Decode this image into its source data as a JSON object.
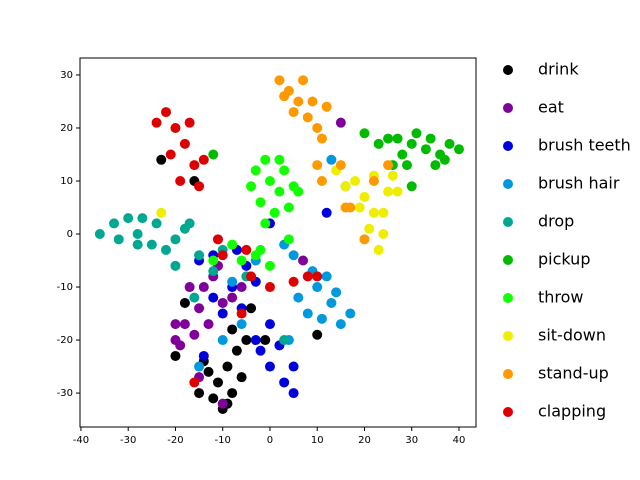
{
  "chart_data": {
    "type": "scatter",
    "xlim": [
      -40.2,
      43.6
    ],
    "ylim": [
      -36.4,
      33.2
    ],
    "xticks": [
      -40,
      -30,
      -20,
      -10,
      0,
      10,
      20,
      30,
      40
    ],
    "yticks": [
      -30,
      -20,
      -10,
      0,
      10,
      20,
      30
    ],
    "legend": "outside-right",
    "series": [
      {
        "name": "drink",
        "color": "#000000",
        "x": [
          -12,
          -10,
          -8,
          -11,
          -9,
          -7,
          -6,
          -13,
          -14,
          -15,
          -5,
          -8,
          -20,
          -18,
          -4,
          -1,
          10,
          -23,
          -16,
          -9
        ],
        "y": [
          -31,
          -33,
          -30,
          -28,
          -25,
          -22,
          -27,
          -26,
          -24,
          -30,
          -20,
          -18,
          -23,
          -13,
          -14,
          -20,
          -19,
          14,
          10,
          -32
        ]
      },
      {
        "name": "eat",
        "color": "#80009a",
        "x": [
          -20,
          -18,
          -15,
          -14,
          -12,
          -17,
          -13,
          -16,
          -19,
          -10,
          -8,
          -10,
          -15,
          -6,
          7,
          -20,
          -11,
          15
        ],
        "y": [
          -20,
          -17,
          -14,
          -10,
          -8,
          -10,
          -17,
          -19,
          -21,
          -13,
          -12,
          -32,
          -27,
          -10,
          -5,
          -17,
          -6,
          21
        ]
      },
      {
        "name": "brush teeth",
        "color": "#0000dd",
        "x": [
          -10,
          -6,
          -3,
          0,
          3,
          5,
          -2,
          -8,
          -12,
          -5,
          -15,
          -7,
          0,
          2,
          -14,
          12,
          0,
          -12,
          -3,
          5
        ],
        "y": [
          -15,
          -14,
          -20,
          -25,
          -28,
          -30,
          -22,
          -10,
          -12,
          -6,
          -5,
          -3,
          -17,
          -21,
          -23,
          4,
          2,
          -4,
          -9,
          -25
        ]
      },
      {
        "name": "brush hair",
        "color": "#0099dd",
        "x": [
          10,
          13,
          15,
          8,
          12,
          17,
          6,
          5,
          9,
          -3,
          -8,
          -15,
          4,
          11,
          3,
          -10,
          -6,
          14,
          13,
          16
        ],
        "y": [
          -10,
          -13,
          -17,
          -15,
          -8,
          -15,
          -12,
          -4,
          -7,
          -5,
          -9,
          -25,
          -20,
          -16,
          -2,
          -20,
          -17,
          -11,
          14,
          9
        ]
      },
      {
        "name": "drop",
        "color": "#00a891",
        "x": [
          -36,
          -33,
          -30,
          -28,
          -25,
          -22,
          -20,
          -18,
          -27,
          -32,
          -24,
          -20,
          -16,
          -17,
          -28,
          -12,
          -5,
          3,
          -10,
          -15
        ],
        "y": [
          0,
          2,
          3,
          0,
          -2,
          -3,
          -1,
          1,
          3,
          -1,
          2,
          -6,
          -12,
          2,
          -2,
          -7,
          -8,
          -20,
          -3,
          -4
        ]
      },
      {
        "name": "pickup",
        "color": "#00bb00",
        "x": [
          25,
          28,
          30,
          33,
          36,
          38,
          40,
          26,
          31,
          35,
          23,
          20,
          34,
          29,
          30,
          -12,
          37,
          27
        ],
        "y": [
          18,
          15,
          17,
          16,
          15,
          17,
          16,
          13,
          19,
          13,
          17,
          19,
          18,
          13,
          9,
          15,
          14,
          18
        ]
      },
      {
        "name": "throw",
        "color": "#11ff00",
        "x": [
          -3,
          -1,
          0,
          2,
          -2,
          1,
          -4,
          3,
          -1,
          5,
          6,
          -2,
          -6,
          -8,
          4,
          0,
          -3,
          4,
          2,
          -12
        ],
        "y": [
          12,
          14,
          10,
          8,
          6,
          4,
          9,
          12,
          2,
          9,
          8,
          -3,
          -5,
          -2,
          -1,
          -6,
          -4,
          5,
          14,
          -5
        ]
      },
      {
        "name": "sit-down",
        "color": "#eeee00",
        "x": [
          18,
          20,
          22,
          24,
          21,
          23,
          19,
          25,
          26,
          16,
          22,
          20,
          24,
          14,
          27,
          -23
        ],
        "y": [
          10,
          7,
          4,
          0,
          1,
          -3,
          5,
          8,
          11,
          9,
          11,
          -1,
          4,
          12,
          8,
          4
        ]
      },
      {
        "name": "stand-up",
        "color": "#ff9900",
        "x": [
          2,
          4,
          6,
          8,
          10,
          7,
          3,
          9,
          11,
          12,
          5,
          10,
          11,
          16,
          17,
          22,
          25,
          20,
          15
        ],
        "y": [
          29,
          27,
          25,
          22,
          20,
          29,
          26,
          25,
          18,
          24,
          23,
          13,
          10,
          5,
          5,
          10,
          13,
          -1,
          13
        ]
      },
      {
        "name": "clapping",
        "color": "#dd0000",
        "x": [
          -22,
          -20,
          -18,
          -16,
          -19,
          -21,
          -17,
          -14,
          -24,
          -15,
          -11,
          -10,
          -5,
          0,
          5,
          8,
          -6,
          -16,
          -4,
          10
        ],
        "y": [
          23,
          20,
          17,
          13,
          10,
          15,
          21,
          14,
          21,
          9,
          -1,
          -4,
          -3,
          -10,
          -9,
          -8,
          -15,
          -28,
          -8,
          -8
        ]
      }
    ]
  }
}
